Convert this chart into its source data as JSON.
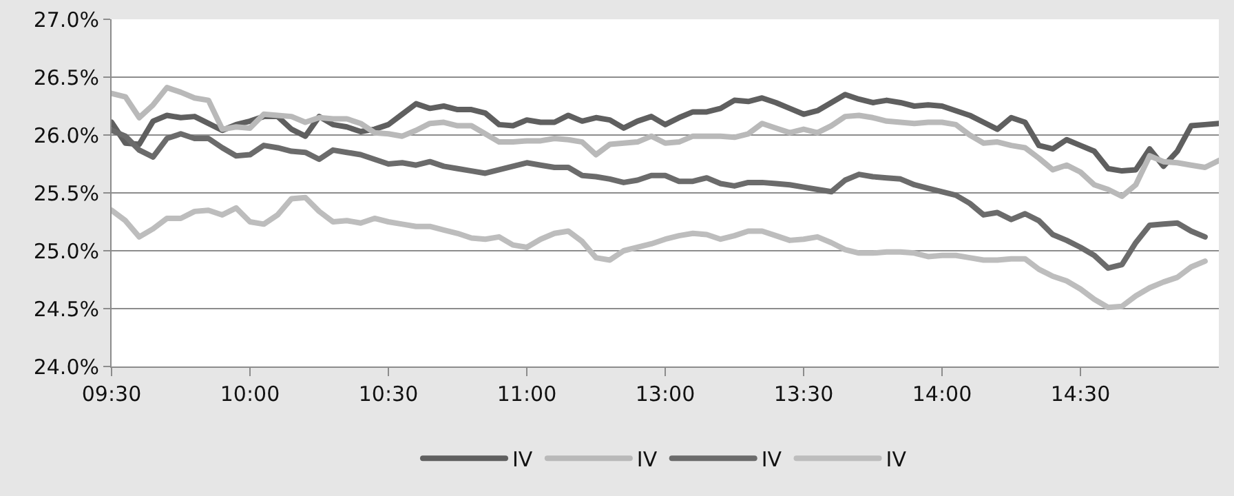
{
  "chart_data": {
    "type": "line",
    "categories": [
      "09:30",
      null,
      null,
      null,
      null,
      null,
      null,
      null,
      null,
      null,
      "10:00",
      null,
      null,
      null,
      null,
      null,
      null,
      null,
      null,
      null,
      "10:30",
      null,
      null,
      null,
      null,
      null,
      null,
      null,
      null,
      null,
      "11:00",
      null,
      null,
      null,
      null,
      null,
      null,
      null,
      null,
      null,
      "13:00",
      null,
      null,
      null,
      null,
      null,
      null,
      null,
      null,
      null,
      "13:30",
      null,
      null,
      null,
      null,
      null,
      null,
      null,
      null,
      null,
      "14:00",
      null,
      null,
      null,
      null,
      null,
      null,
      null,
      null,
      null,
      "14:30",
      null,
      null,
      null,
      null,
      null,
      null,
      null,
      null,
      null,
      null
    ],
    "ylim": [
      24,
      27
    ],
    "yticks": [
      {
        "value": 24,
        "label": "24.0%"
      },
      {
        "value": 24.5,
        "label": "24.5%"
      },
      {
        "value": 25,
        "label": "25.0%"
      },
      {
        "value": 25.5,
        "label": "25.5%"
      },
      {
        "value": 26,
        "label": "26.0%"
      },
      {
        "value": 26.5,
        "label": "26.5%"
      },
      {
        "value": 27,
        "label": "27.0%"
      }
    ],
    "grid": "y",
    "legend": "bottom",
    "marker": "none",
    "line_style": "solid",
    "series": [
      {
        "name": "IV",
        "color": "#5f5f5f",
        "values": [
          26.11,
          25.93,
          25.92,
          26.12,
          26.17,
          26.15,
          26.16,
          26.1,
          26.04,
          26.09,
          26.12,
          26.16,
          26.16,
          26.05,
          25.99,
          26.16,
          26.09,
          26.07,
          26.03,
          26.05,
          26.09,
          26.18,
          26.27,
          26.23,
          26.25,
          26.22,
          26.22,
          26.19,
          26.09,
          26.08,
          26.13,
          26.11,
          26.11,
          26.17,
          26.12,
          26.15,
          26.13,
          26.06,
          26.12,
          26.16,
          26.09,
          26.15,
          26.2,
          26.2,
          26.23,
          26.3,
          26.29,
          26.32,
          26.28,
          26.23,
          26.18,
          26.21,
          26.28,
          26.35,
          26.31,
          26.28,
          26.3,
          26.28,
          26.25,
          26.26,
          26.25,
          26.21,
          26.17,
          26.11,
          26.05,
          26.15,
          26.11,
          25.91,
          25.88,
          25.96,
          25.91,
          25.86,
          25.71,
          25.69,
          25.7,
          25.88,
          25.73,
          25.86,
          26.08,
          26.09,
          26.1
        ]
      },
      {
        "name": "IV",
        "color": "#b9b9b9",
        "values": [
          26.36,
          26.33,
          26.15,
          26.26,
          26.41,
          26.37,
          26.32,
          26.3,
          26.05,
          26.07,
          26.06,
          26.18,
          26.17,
          26.16,
          26.11,
          26.15,
          26.14,
          26.14,
          26.1,
          26.02,
          26.01,
          25.99,
          26.04,
          26.1,
          26.11,
          26.08,
          26.08,
          26.01,
          25.94,
          25.94,
          25.95,
          25.95,
          25.97,
          25.96,
          25.94,
          25.83,
          25.92,
          25.93,
          25.94,
          25.99,
          25.93,
          25.94,
          25.99,
          25.99,
          25.99,
          25.98,
          26.01,
          26.1,
          26.06,
          26.02,
          26.05,
          26.02,
          26.08,
          26.16,
          26.17,
          26.15,
          26.12,
          26.11,
          26.1,
          26.11,
          26.11,
          26.09,
          26.0,
          25.93,
          25.94,
          25.91,
          25.89,
          25.8,
          25.7,
          25.74,
          25.68,
          25.57,
          25.53,
          25.47,
          25.57,
          25.82,
          25.77,
          25.76,
          25.74,
          25.72,
          25.78
        ]
      },
      {
        "name": "IV",
        "color": "#6b6b6b",
        "values": [
          26.04,
          25.99,
          25.87,
          25.81,
          25.97,
          26.01,
          25.97,
          25.97,
          25.89,
          25.82,
          25.83,
          25.91,
          25.89,
          25.86,
          25.85,
          25.79,
          25.87,
          25.85,
          25.83,
          25.79,
          25.75,
          25.76,
          25.74,
          25.77,
          25.73,
          25.71,
          25.69,
          25.67,
          25.7,
          25.73,
          25.76,
          25.74,
          25.72,
          25.72,
          25.65,
          25.64,
          25.62,
          25.59,
          25.61,
          25.65,
          25.65,
          25.6,
          25.6,
          25.63,
          25.58,
          25.56,
          25.59,
          25.59,
          25.58,
          25.57,
          25.55,
          25.53,
          25.51,
          25.61,
          25.66,
          25.64,
          25.63,
          25.62,
          25.57,
          25.54,
          25.51,
          25.48,
          25.41,
          25.31,
          25.33,
          25.27,
          25.32,
          25.26,
          25.14,
          25.09,
          25.03,
          24.96,
          24.85,
          24.88,
          25.07,
          25.22,
          25.23,
          25.24,
          25.17,
          25.12,
          null
        ]
      },
      {
        "name": "IV",
        "color": "#bdbdbd",
        "values": [
          25.35,
          25.26,
          25.12,
          25.19,
          25.28,
          25.28,
          25.34,
          25.35,
          25.31,
          25.37,
          25.25,
          25.23,
          25.31,
          25.45,
          25.46,
          25.34,
          25.25,
          25.26,
          25.24,
          25.28,
          25.25,
          25.23,
          25.21,
          25.21,
          25.18,
          25.15,
          25.11,
          25.1,
          25.12,
          25.05,
          25.03,
          25.1,
          25.15,
          25.17,
          25.08,
          24.94,
          24.92,
          25.0,
          25.03,
          25.06,
          25.1,
          25.13,
          25.15,
          25.14,
          25.1,
          25.13,
          25.17,
          25.17,
          25.13,
          25.09,
          25.1,
          25.12,
          25.07,
          25.01,
          24.98,
          24.98,
          24.99,
          24.99,
          24.98,
          24.95,
          24.96,
          24.96,
          24.94,
          24.92,
          24.92,
          24.93,
          24.93,
          24.84,
          24.78,
          24.74,
          24.67,
          24.58,
          24.51,
          24.52,
          24.61,
          24.68,
          24.73,
          24.77,
          24.86,
          24.91,
          null
        ]
      }
    ]
  }
}
